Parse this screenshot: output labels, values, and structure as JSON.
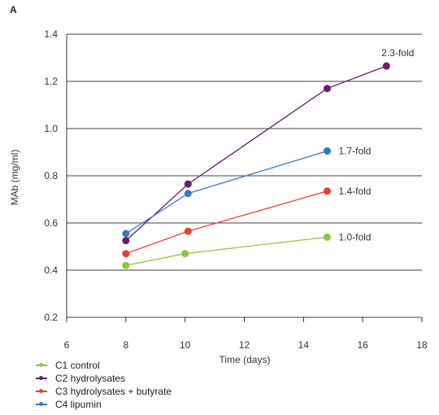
{
  "chart_data": {
    "type": "line",
    "panel_label": "A",
    "xlabel": "Time (days)",
    "ylabel": "MAb (mg/ml)",
    "xlim": [
      6,
      18
    ],
    "ylim": [
      0.2,
      1.4
    ],
    "xticks": [
      6,
      8,
      10,
      12,
      14,
      16,
      18
    ],
    "yticks": [
      0.2,
      0.4,
      0.6,
      0.8,
      1.0,
      1.2,
      1.4
    ],
    "ytick_labels": [
      "0.2",
      "0.4",
      "0.6",
      "0.8",
      "1.0",
      "1.2",
      "1.4"
    ],
    "grid": "horizontal",
    "legend_position": "bottom-left",
    "series": [
      {
        "name": "C1 control",
        "color": "#8dc63f",
        "x": [
          8.0,
          10.0,
          14.8
        ],
        "y": [
          0.42,
          0.47,
          0.54
        ],
        "annotation": "1.0-fold"
      },
      {
        "name": "C2 hydrolysates",
        "color": "#6a1b6e",
        "x": [
          8.0,
          10.1,
          14.8,
          16.8
        ],
        "y": [
          0.525,
          0.765,
          1.17,
          1.265
        ],
        "annotation": "2.3-fold"
      },
      {
        "name": "C3 hydrolysates + butyrate",
        "color": "#f03c2e",
        "x": [
          8.0,
          10.1,
          14.8
        ],
        "y": [
          0.47,
          0.565,
          0.735
        ],
        "annotation": "1.4-fold"
      },
      {
        "name": "C4 lipumin",
        "color": "#3a78c2",
        "x": [
          8.0,
          10.1,
          14.8
        ],
        "y": [
          0.555,
          0.725,
          0.905
        ],
        "annotation": "1.7-fold"
      }
    ]
  }
}
